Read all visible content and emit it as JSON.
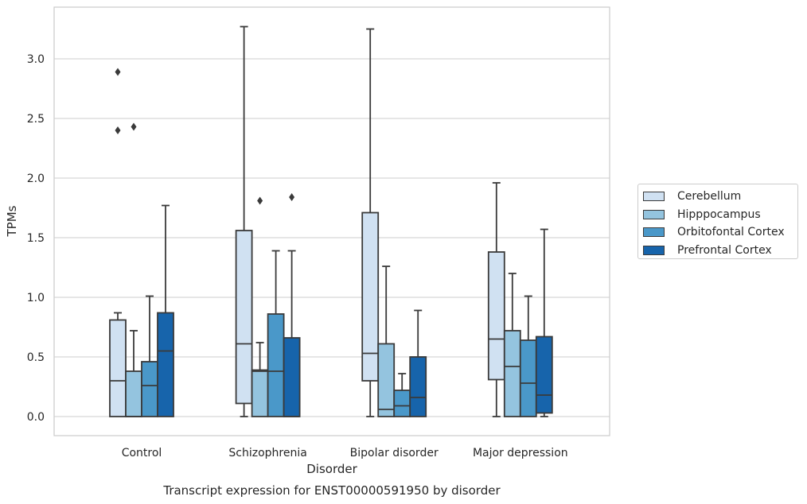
{
  "chart_data": {
    "type": "box",
    "title": "Transcript expression for ENST00000591950 by disorder",
    "xlabel": "Disorder",
    "ylabel": "TPMs",
    "ylim": [
      -0.15,
      3.45
    ],
    "yticks": [
      "0.0",
      "0.5",
      "1.0",
      "1.5",
      "2.0",
      "2.5",
      "3.0"
    ],
    "grid": true,
    "legend_position": "right",
    "categories": [
      "Control",
      "Schizophrenia",
      "Bipolar disorder",
      "Major depression"
    ],
    "series": [
      {
        "name": "Cerebellum",
        "color": "#d0e1f2",
        "boxes": [
          {
            "whislo": 0.0,
            "q1": 0.0,
            "med": 0.3,
            "q3": 0.81,
            "whishi": 0.87,
            "fliers": [
              2.4,
              2.89
            ]
          },
          {
            "whislo": 0.0,
            "q1": 0.11,
            "med": 0.61,
            "q3": 1.56,
            "whishi": 3.27,
            "fliers": []
          },
          {
            "whislo": 0.0,
            "q1": 0.3,
            "med": 0.53,
            "q3": 1.71,
            "whishi": 3.25,
            "fliers": []
          },
          {
            "whislo": 0.0,
            "q1": 0.31,
            "med": 0.65,
            "q3": 1.38,
            "whishi": 1.96,
            "fliers": []
          }
        ]
      },
      {
        "name": "Hipppocampus",
        "color": "#94c4df",
        "boxes": [
          {
            "whislo": 0.0,
            "q1": 0.0,
            "med": 0.0,
            "q3": 0.38,
            "whishi": 0.72,
            "fliers": [
              2.43
            ]
          },
          {
            "whislo": 0.0,
            "q1": 0.0,
            "med": 0.38,
            "q3": 0.39,
            "whishi": 0.62,
            "fliers": [
              1.81
            ]
          },
          {
            "whislo": 0.0,
            "q1": 0.0,
            "med": 0.06,
            "q3": 0.61,
            "whishi": 1.26,
            "fliers": []
          },
          {
            "whislo": 0.0,
            "q1": 0.0,
            "med": 0.42,
            "q3": 0.72,
            "whishi": 1.2,
            "fliers": []
          }
        ]
      },
      {
        "name": "Orbitofontal Cortex",
        "color": "#4a98c9",
        "boxes": [
          {
            "whislo": 0.0,
            "q1": 0.0,
            "med": 0.26,
            "q3": 0.46,
            "whishi": 1.01,
            "fliers": []
          },
          {
            "whislo": 0.0,
            "q1": 0.0,
            "med": 0.38,
            "q3": 0.86,
            "whishi": 1.39,
            "fliers": []
          },
          {
            "whislo": 0.0,
            "q1": 0.0,
            "med": 0.09,
            "q3": 0.22,
            "whishi": 0.36,
            "fliers": []
          },
          {
            "whislo": 0.0,
            "q1": 0.0,
            "med": 0.28,
            "q3": 0.64,
            "whishi": 1.01,
            "fliers": []
          }
        ]
      },
      {
        "name": "Prefrontal Cortex",
        "color": "#1764ab",
        "boxes": [
          {
            "whislo": 0.0,
            "q1": 0.0,
            "med": 0.55,
            "q3": 0.87,
            "whishi": 1.77,
            "fliers": []
          },
          {
            "whislo": 0.0,
            "q1": 0.0,
            "med": 0.0,
            "q3": 0.66,
            "whishi": 1.39,
            "fliers": [
              1.84
            ]
          },
          {
            "whislo": 0.0,
            "q1": 0.0,
            "med": 0.16,
            "q3": 0.5,
            "whishi": 0.89,
            "fliers": []
          },
          {
            "whislo": 0.0,
            "q1": 0.03,
            "med": 0.18,
            "q3": 0.67,
            "whishi": 1.57,
            "fliers": []
          }
        ]
      }
    ]
  }
}
